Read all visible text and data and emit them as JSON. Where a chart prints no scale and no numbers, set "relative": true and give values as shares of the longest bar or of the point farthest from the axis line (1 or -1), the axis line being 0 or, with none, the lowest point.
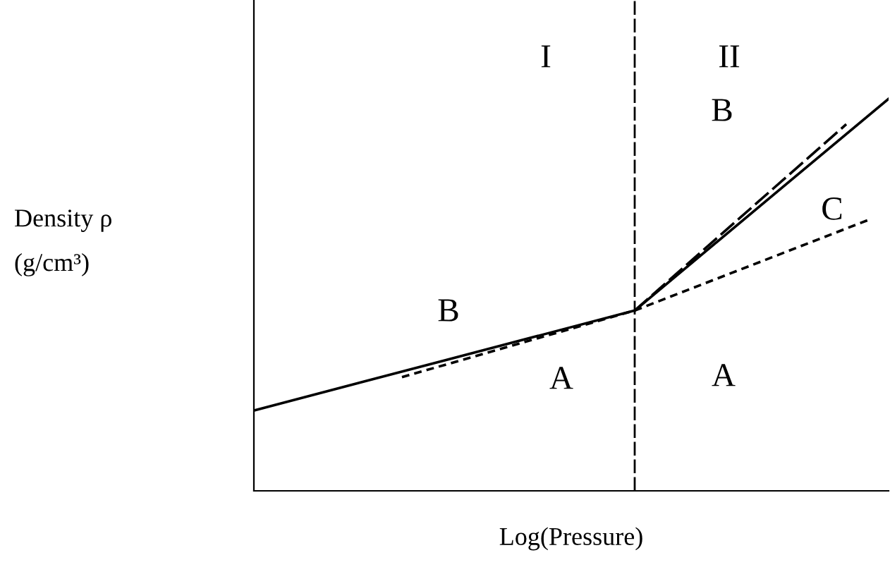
{
  "chart_data": {
    "type": "line",
    "relative": true,
    "xlabel": "Log(Pressure)",
    "categories": [
      null,
      null,
      null,
      null,
      null,
      null,
      null,
      null,
      null,
      null,
      null,
      null,
      null,
      null,
      null,
      null,
      null,
      null,
      null,
      null,
      null,
      null,
      null,
      null,
      null,
      null,
      null,
      null,
      null,
      null,
      null
    ],
    "series": [
      {
        "color": "#000000",
        "line_style": "solid",
        "values": [
          0.205,
          null,
          null,
          null,
          null,
          null,
          null,
          null,
          null,
          null,
          null,
          null,
          null,
          null,
          null,
          null,
          null,
          null,
          0.46,
          null,
          null,
          null,
          null,
          null,
          null,
          null,
          null,
          null,
          null,
          null,
          1.0
        ]
      },
      {
        "color": "#000000",
        "line_style": "dotted",
        "values": [
          null,
          null,
          null,
          null,
          null,
          null,
          null,
          0.29,
          null,
          null,
          null,
          null,
          null,
          null,
          null,
          null,
          null,
          null,
          0.46,
          null,
          null,
          null,
          null,
          null,
          null,
          null,
          null,
          null,
          null,
          0.69,
          null
        ]
      },
      {
        "color": "#000000",
        "line_style": "dashed",
        "values": [
          null,
          null,
          null,
          null,
          null,
          null,
          null,
          null,
          null,
          null,
          null,
          null,
          null,
          null,
          null,
          null,
          null,
          null,
          0.46,
          null,
          null,
          null,
          null,
          null,
          null,
          null,
          null,
          null,
          0.935,
          null,
          null
        ]
      }
    ],
    "annotations": [
      "Density ρ\n(g/cm³)",
      "I",
      "II",
      "B",
      "C",
      "B",
      "A",
      "A"
    ]
  }
}
